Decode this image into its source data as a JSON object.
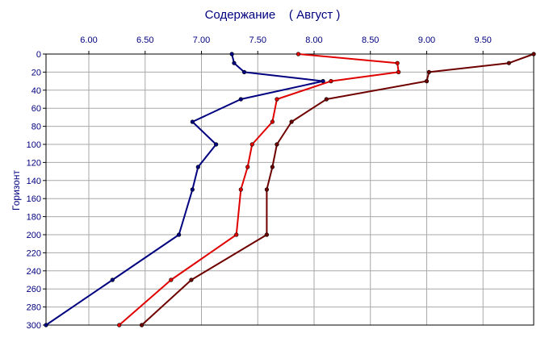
{
  "chart_data": {
    "type": "line",
    "title": "Содержание    ( Август )",
    "ylabel": "Горизонт",
    "xlabel": "",
    "x_axis_position": "top",
    "y_inverted": true,
    "xlim": [
      5.62,
      9.95
    ],
    "ylim": [
      0,
      300
    ],
    "x_ticks": [
      "6.00",
      "6.50",
      "7.00",
      "7.50",
      "8.00",
      "8.50",
      "9.00",
      "9.50"
    ],
    "y_ticks": [
      "0",
      "20",
      "40",
      "60",
      "80",
      "100",
      "120",
      "140",
      "160",
      "180",
      "200",
      "220",
      "240",
      "260",
      "280",
      "300"
    ],
    "grid": true,
    "legend": false,
    "series": [
      {
        "color": "#000080",
        "points": [
          [
            7.27,
            0
          ],
          [
            7.29,
            10
          ],
          [
            7.38,
            20
          ],
          [
            8.08,
            30
          ],
          [
            7.35,
            50
          ],
          [
            6.92,
            75
          ],
          [
            7.13,
            100
          ],
          [
            6.97,
            125
          ],
          [
            6.92,
            150
          ],
          [
            6.8,
            200
          ],
          [
            6.21,
            250
          ],
          [
            5.62,
            300
          ]
        ]
      },
      {
        "color": "#e00000",
        "points": [
          [
            7.86,
            0
          ],
          [
            8.74,
            10
          ],
          [
            8.75,
            20
          ],
          [
            8.15,
            30
          ],
          [
            7.67,
            50
          ],
          [
            7.63,
            75
          ],
          [
            7.45,
            100
          ],
          [
            7.41,
            125
          ],
          [
            7.35,
            150
          ],
          [
            7.31,
            200
          ],
          [
            6.73,
            250
          ],
          [
            6.27,
            300
          ]
        ]
      },
      {
        "color": "#6e0000",
        "points": [
          [
            9.95,
            0
          ],
          [
            9.73,
            10
          ],
          [
            9.02,
            20
          ],
          [
            9.0,
            30
          ],
          [
            8.11,
            50
          ],
          [
            7.8,
            75
          ],
          [
            7.67,
            100
          ],
          [
            7.63,
            125
          ],
          [
            7.58,
            150
          ],
          [
            7.58,
            200
          ],
          [
            6.91,
            250
          ],
          [
            6.47,
            300
          ]
        ]
      }
    ]
  }
}
